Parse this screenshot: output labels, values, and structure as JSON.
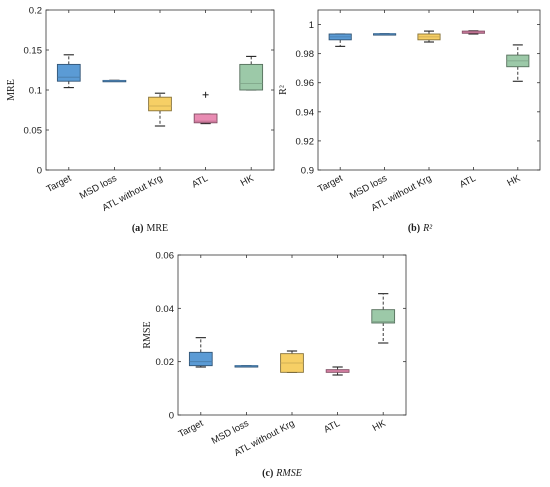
{
  "chart_data": [
    {
      "type": "boxplot",
      "caption_letter": "(a)",
      "caption_text": "MRE",
      "ylabel": "MRE",
      "ylim": [
        0,
        0.2
      ],
      "yticks": [
        0,
        0.05,
        0.1,
        0.15,
        0.2
      ],
      "ytick_labels": [
        "0",
        "0.05",
        "0.1",
        "0.15",
        "0.2"
      ],
      "categories": [
        "Target",
        "MSD loss",
        "ATL without Krg",
        "ATL",
        "HK"
      ],
      "boxes": [
        {
          "name": "Target",
          "whislo": 0.103,
          "q1": 0.111,
          "med": 0.116,
          "q3": 0.132,
          "whishi": 0.144,
          "fliers": [],
          "color": "#5b9bd5"
        },
        {
          "name": "MSD loss",
          "whislo": 0.112,
          "q1": 0.112,
          "med": 0.112,
          "q3": 0.112,
          "whishi": 0.112,
          "fliers": [],
          "color": "#5b9bd5"
        },
        {
          "name": "ATL without Krg",
          "whislo": 0.055,
          "q1": 0.074,
          "med": 0.08,
          "q3": 0.091,
          "whishi": 0.096,
          "fliers": [],
          "color": "#f6cf65"
        },
        {
          "name": "ATL",
          "whislo": 0.058,
          "q1": 0.059,
          "med": 0.061,
          "q3": 0.07,
          "whishi": 0.07,
          "fliers": [
            0.094
          ],
          "color": "#e98cb3"
        },
        {
          "name": "HK",
          "whislo": 0.1,
          "q1": 0.1,
          "med": 0.108,
          "q3": 0.132,
          "whishi": 0.142,
          "fliers": [],
          "color": "#9cc9a8"
        }
      ]
    },
    {
      "type": "boxplot",
      "caption_letter": "(b)",
      "caption_text": "R²",
      "ylabel": "R²",
      "ylim": [
        0.9,
        1.01
      ],
      "yticks": [
        0.9,
        0.92,
        0.94,
        0.96,
        0.98,
        1.0
      ],
      "ytick_labels": [
        "0.9",
        "0.92",
        "0.94",
        "0.96",
        "0.98",
        "1"
      ],
      "categories": [
        "Target",
        "MSD loss",
        "ATL without Krg",
        "ATL",
        "HK"
      ],
      "boxes": [
        {
          "name": "Target",
          "whislo": 0.985,
          "q1": 0.9895,
          "med": 0.9915,
          "q3": 0.9935,
          "whishi": 0.9935,
          "fliers": [],
          "color": "#5b9bd5"
        },
        {
          "name": "MSD loss",
          "whislo": 0.9937,
          "q1": 0.9937,
          "med": 0.9937,
          "q3": 0.9937,
          "whishi": 0.9937,
          "fliers": [],
          "color": "#5b9bd5"
        },
        {
          "name": "ATL without Krg",
          "whislo": 0.988,
          "q1": 0.9895,
          "med": 0.9915,
          "q3": 0.9935,
          "whishi": 0.9955,
          "fliers": [],
          "color": "#f6cf65"
        },
        {
          "name": "ATL",
          "whislo": 0.9935,
          "q1": 0.994,
          "med": 0.9948,
          "q3": 0.9955,
          "whishi": 0.9957,
          "fliers": [],
          "color": "#e98cb3"
        },
        {
          "name": "HK",
          "whislo": 0.961,
          "q1": 0.971,
          "med": 0.975,
          "q3": 0.979,
          "whishi": 0.986,
          "fliers": [],
          "color": "#9cc9a8"
        }
      ]
    },
    {
      "type": "boxplot",
      "caption_letter": "(c)",
      "caption_text": "RMSE",
      "ylabel": "RMSE",
      "ylim": [
        0,
        0.06
      ],
      "yticks": [
        0,
        0.02,
        0.04,
        0.06
      ],
      "ytick_labels": [
        "0",
        "0.02",
        "0.04",
        "0.06"
      ],
      "categories": [
        "Target",
        "MSD loss",
        "ATL without Krg",
        "ATL",
        "HK"
      ],
      "boxes": [
        {
          "name": "Target",
          "whislo": 0.018,
          "q1": 0.0185,
          "med": 0.02,
          "q3": 0.0235,
          "whishi": 0.029,
          "fliers": [],
          "color": "#5b9bd5"
        },
        {
          "name": "MSD loss",
          "whislo": 0.0185,
          "q1": 0.0185,
          "med": 0.0185,
          "q3": 0.0185,
          "whishi": 0.0185,
          "fliers": [],
          "color": "#5b9bd5"
        },
        {
          "name": "ATL without Krg",
          "whislo": 0.016,
          "q1": 0.016,
          "med": 0.0195,
          "q3": 0.023,
          "whishi": 0.024,
          "fliers": [],
          "color": "#f6cf65"
        },
        {
          "name": "ATL",
          "whislo": 0.015,
          "q1": 0.016,
          "med": 0.0165,
          "q3": 0.017,
          "whishi": 0.018,
          "fliers": [],
          "color": "#e98cb3"
        },
        {
          "name": "HK",
          "whislo": 0.027,
          "q1": 0.0345,
          "med": 0.035,
          "q3": 0.0395,
          "whishi": 0.0455,
          "fliers": [],
          "color": "#9cc9a8"
        }
      ]
    }
  ]
}
